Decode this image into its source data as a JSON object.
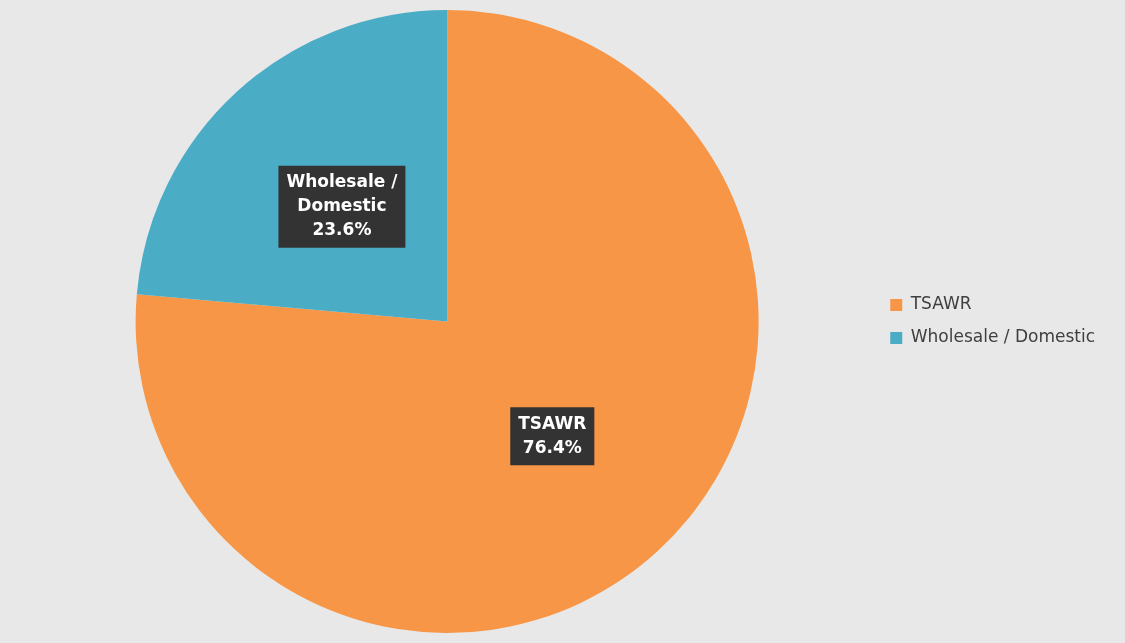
{
  "chart_data": {
    "type": "pie",
    "categories": [
      "TSAWR",
      "Wholesale / Domestic"
    ],
    "values": [
      76.4,
      23.6
    ],
    "colors": [
      "#f79646",
      "#4bacc6"
    ],
    "value_labels": [
      "76.4%",
      "23.6%"
    ],
    "legend": "right"
  }
}
